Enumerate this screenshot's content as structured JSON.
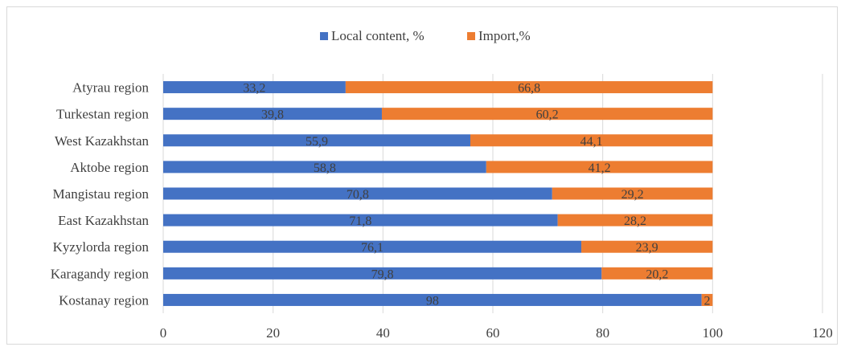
{
  "chart_data": {
    "type": "bar",
    "orientation": "horizontal",
    "stacked": true,
    "categories": [
      "Kostanay region",
      "Karagandy region",
      "Kyzylorda region",
      "East Kazakhstan",
      "Mangistau region",
      "Aktobe region",
      "West Kazakhstan",
      "Turkestan region",
      "Atyrau region"
    ],
    "series": [
      {
        "name": "Local content, %",
        "color": "#4472c4",
        "values": [
          98,
          79.8,
          76.1,
          71.8,
          70.8,
          58.8,
          55.9,
          39.8,
          33.2
        ],
        "labels": [
          "98",
          "79,8",
          "76,1",
          "71,8",
          "70,8",
          "58,8",
          "55,9",
          "39,8",
          "33,2"
        ]
      },
      {
        "name": "Import,%",
        "color": "#ed7d31",
        "values": [
          2,
          20.2,
          23.9,
          28.2,
          29.2,
          41.2,
          44.1,
          60.2,
          66.8
        ],
        "labels": [
          "2",
          "20,2",
          "23,9",
          "28,2",
          "29,2",
          "41,2",
          "44,1",
          "60,2",
          "66,8"
        ]
      }
    ],
    "xlim": [
      0,
      120
    ],
    "xticks": [
      "0",
      "20",
      "40",
      "60",
      "80",
      "100",
      "120"
    ],
    "xgrid": true,
    "legend_position": "top"
  }
}
